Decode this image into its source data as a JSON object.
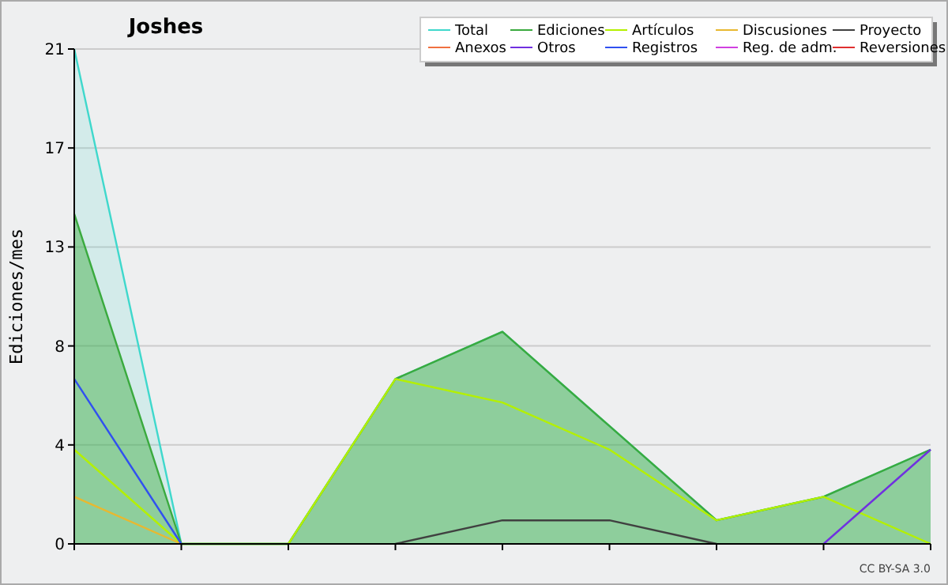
{
  "chart_data": {
    "type": "line",
    "title": "Joshes",
    "ylabel": "Ediciones/mes",
    "categories": [
      null,
      null,
      null,
      null,
      null,
      null,
      null,
      null,
      null
    ],
    "series": [
      {
        "name": "Total",
        "type": "area",
        "color": "#3fd8cc",
        "values": [
          21,
          0,
          0,
          7,
          9,
          5,
          1,
          2,
          4
        ]
      },
      {
        "name": "Ediciones",
        "type": "area",
        "color": "#3aaa3e",
        "values": [
          14,
          0,
          0,
          7,
          9,
          5,
          1,
          2,
          4
        ]
      },
      {
        "name": "Artículos",
        "color": "#b4f000",
        "values": [
          4,
          0,
          0,
          7,
          6,
          4,
          1,
          2,
          0
        ]
      },
      {
        "name": "Discusiones",
        "color": "#e8b830",
        "values": [
          2,
          0,
          null,
          null,
          null,
          null,
          null,
          null,
          null
        ]
      },
      {
        "name": "Proyecto",
        "color": "#404040",
        "values": [
          null,
          null,
          null,
          0,
          1,
          1,
          0,
          null,
          null
        ]
      },
      {
        "name": "Anexos",
        "color": "#f07040",
        "values": [
          null,
          null,
          null,
          null,
          null,
          null,
          null,
          null,
          null
        ]
      },
      {
        "name": "Otros",
        "color": "#7030e0",
        "values": [
          null,
          null,
          null,
          null,
          null,
          null,
          null,
          0,
          4
        ]
      },
      {
        "name": "Registros",
        "color": "#3050f0",
        "values": [
          7,
          0,
          null,
          null,
          null,
          null,
          null,
          null,
          null
        ]
      },
      {
        "name": "Reg. de adm.",
        "color": "#d040e0",
        "values": [
          null,
          null,
          null,
          null,
          null,
          null,
          null,
          null,
          null
        ]
      },
      {
        "name": "Reversiones",
        "color": "#e03030",
        "values": [
          null,
          null,
          null,
          null,
          null,
          null,
          null,
          null,
          null
        ]
      }
    ],
    "ylim": [
      0,
      21
    ],
    "yticks": [
      0,
      {
        "value": 4.2,
        "label": "4"
      },
      {
        "value": 8.4,
        "label": "8"
      },
      {
        "value": 12.6,
        "label": "13"
      },
      {
        "value": 16.8,
        "label": "17"
      },
      21
    ],
    "grid": "y",
    "legend": "top right",
    "annotations": [
      "CC BY-SA 3.0"
    ]
  }
}
